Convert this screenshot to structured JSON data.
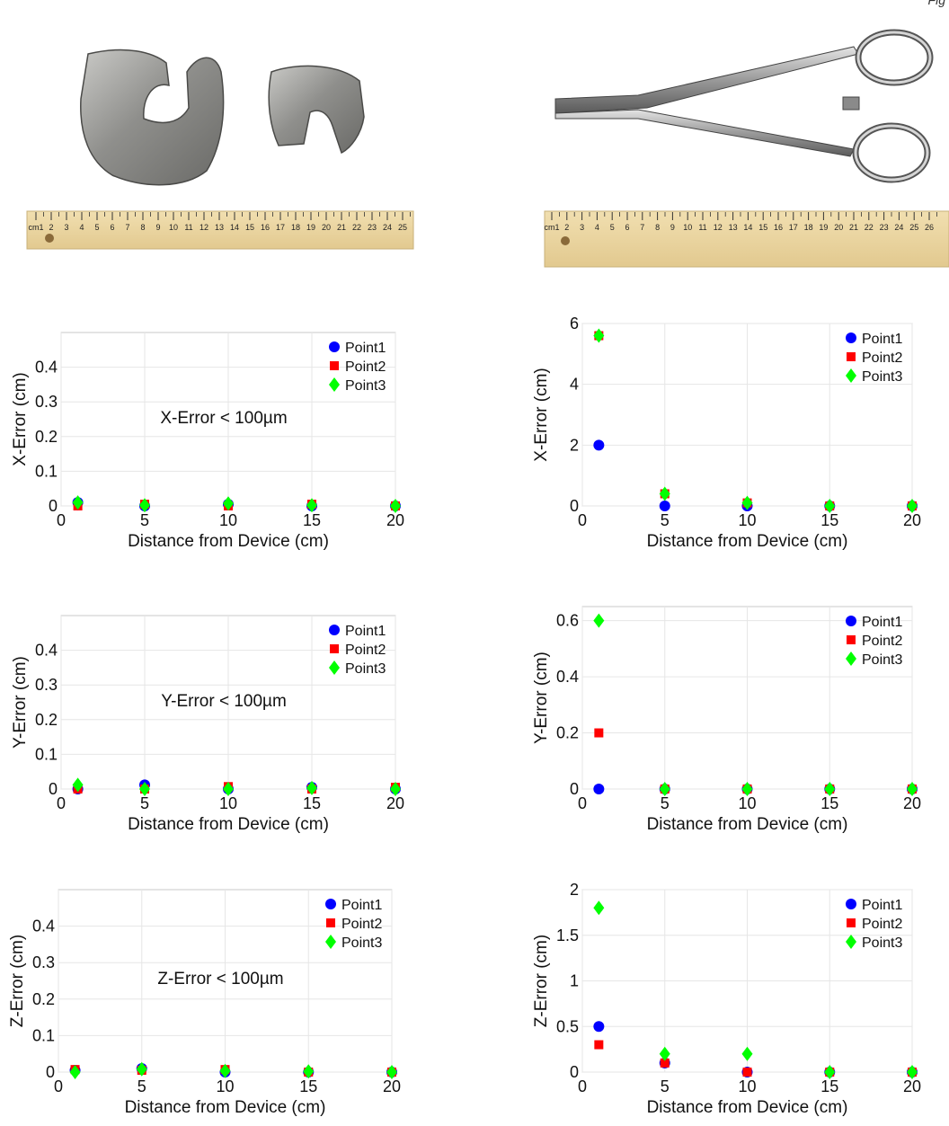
{
  "page_corner_text": "Fig",
  "photos": {
    "left": {
      "description_icon": "knee-implant-icon",
      "ruler_labels": [
        "cm1",
        "2",
        "3",
        "4",
        "5",
        "6",
        "7",
        "8",
        "9",
        "10",
        "11",
        "12",
        "13",
        "14",
        "15",
        "16",
        "17",
        "18",
        "19",
        "20",
        "21",
        "22",
        "23",
        "24",
        "25"
      ]
    },
    "right": {
      "description_icon": "forceps-icon",
      "ruler_labels": [
        "cm1",
        "2",
        "3",
        "4",
        "5",
        "6",
        "7",
        "8",
        "9",
        "10",
        "11",
        "12",
        "13",
        "14",
        "15",
        "16",
        "17",
        "18",
        "19",
        "20",
        "21",
        "22",
        "23",
        "24",
        "25",
        "26"
      ]
    }
  },
  "colors": {
    "point1": "#0000ff",
    "point2": "#ff0000",
    "point3": "#00ff00"
  },
  "chart_data": [
    {
      "type": "scatter",
      "id": "x-left",
      "xlabel": "Distance from Device (cm)",
      "ylabel": "X-Error (cm)",
      "xlim": [
        0,
        20
      ],
      "ylim": [
        0,
        0.5
      ],
      "xticks": [
        0,
        5,
        10,
        15,
        20
      ],
      "xtick_labels": [
        "0",
        "5",
        "10",
        "15",
        "20"
      ],
      "yticks": [
        0,
        0.1,
        0.2,
        0.3,
        0.4
      ],
      "ytick_labels": [
        "0",
        "0.1",
        "0.2",
        "0.3",
        "0.4"
      ],
      "annotation": "X-Error < 100µm",
      "grid": true,
      "legend_position": "top-right",
      "series": [
        {
          "name": "Point1",
          "marker": "circle",
          "x": [
            1,
            5,
            10,
            15,
            20
          ],
          "y": [
            0.01,
            0,
            0.005,
            0,
            0
          ]
        },
        {
          "name": "Point2",
          "marker": "square",
          "x": [
            1,
            5,
            10,
            15,
            20
          ],
          "y": [
            0,
            0.005,
            0,
            0.005,
            0
          ]
        },
        {
          "name": "Point3",
          "marker": "diamond",
          "x": [
            1,
            5,
            10,
            15,
            20
          ],
          "y": [
            0.01,
            0.002,
            0.007,
            0.002,
            0
          ]
        }
      ]
    },
    {
      "type": "scatter",
      "id": "x-right",
      "xlabel": "Distance from Device (cm)",
      "ylabel": "X-Error (cm)",
      "xlim": [
        0,
        20
      ],
      "ylim": [
        0,
        6
      ],
      "xticks": [
        0,
        5,
        10,
        15,
        20
      ],
      "xtick_labels": [
        "0",
        "5",
        "10",
        "15",
        "20"
      ],
      "yticks": [
        0,
        2,
        4,
        6
      ],
      "ytick_labels": [
        "0",
        "2",
        "4",
        "6"
      ],
      "annotation": "",
      "grid": true,
      "legend_position": "top-right",
      "series": [
        {
          "name": "Point1",
          "marker": "circle",
          "x": [
            1,
            5,
            10,
            15,
            20
          ],
          "y": [
            2,
            0,
            0,
            0,
            0
          ]
        },
        {
          "name": "Point2",
          "marker": "square",
          "x": [
            1,
            5,
            10,
            15,
            20
          ],
          "y": [
            5.6,
            0.4,
            0.1,
            0,
            0
          ]
        },
        {
          "name": "Point3",
          "marker": "diamond",
          "x": [
            1,
            5,
            10,
            15,
            20
          ],
          "y": [
            5.6,
            0.4,
            0.1,
            0,
            0
          ]
        }
      ]
    },
    {
      "type": "scatter",
      "id": "y-left",
      "xlabel": "Distance from Device (cm)",
      "ylabel": "Y-Error (cm)",
      "xlim": [
        0,
        20
      ],
      "ylim": [
        0,
        0.5
      ],
      "xticks": [
        0,
        5,
        10,
        15,
        20
      ],
      "xtick_labels": [
        "0",
        "5",
        "10",
        "15",
        "20"
      ],
      "yticks": [
        0,
        0.1,
        0.2,
        0.3,
        0.4
      ],
      "ytick_labels": [
        "0",
        "0.1",
        "0.2",
        "0.3",
        "0.4"
      ],
      "annotation": "Y-Error < 100µm",
      "grid": true,
      "legend_position": "top-right",
      "series": [
        {
          "name": "Point1",
          "marker": "circle",
          "x": [
            1,
            5,
            10,
            15,
            20
          ],
          "y": [
            0,
            0.012,
            0,
            0.005,
            0
          ]
        },
        {
          "name": "Point2",
          "marker": "square",
          "x": [
            1,
            5,
            10,
            15,
            20
          ],
          "y": [
            0,
            0,
            0.007,
            0,
            0.005
          ]
        },
        {
          "name": "Point3",
          "marker": "diamond",
          "x": [
            1,
            5,
            10,
            15,
            20
          ],
          "y": [
            0.012,
            0,
            0,
            0.003,
            0
          ]
        }
      ]
    },
    {
      "type": "scatter",
      "id": "y-right",
      "xlabel": "Distance from Device (cm)",
      "ylabel": "Y-Error (cm)",
      "xlim": [
        0,
        20
      ],
      "ylim": [
        0,
        0.65
      ],
      "xticks": [
        0,
        5,
        10,
        15,
        20
      ],
      "xtick_labels": [
        "0",
        "5",
        "10",
        "15",
        "20"
      ],
      "yticks": [
        0,
        0.2,
        0.4,
        0.6
      ],
      "ytick_labels": [
        "0",
        "0.2",
        "0.4",
        "0.6"
      ],
      "annotation": "",
      "grid": true,
      "legend_position": "top-right",
      "series": [
        {
          "name": "Point1",
          "marker": "circle",
          "x": [
            1,
            5,
            10,
            15,
            20
          ],
          "y": [
            0,
            0,
            0,
            0,
            0
          ]
        },
        {
          "name": "Point2",
          "marker": "square",
          "x": [
            1,
            5,
            10,
            15,
            20
          ],
          "y": [
            0.2,
            0,
            0,
            0,
            0
          ]
        },
        {
          "name": "Point3",
          "marker": "diamond",
          "x": [
            1,
            5,
            10,
            15,
            20
          ],
          "y": [
            0.6,
            0,
            0,
            0,
            0
          ]
        }
      ]
    },
    {
      "type": "scatter",
      "id": "z-left",
      "xlabel": "Distance from Device (cm)",
      "ylabel": "Z-Error (cm)",
      "xlim": [
        0,
        20
      ],
      "ylim": [
        0,
        0.5
      ],
      "xticks": [
        0,
        5,
        10,
        15,
        20
      ],
      "xtick_labels": [
        "0",
        "5",
        "10",
        "15",
        "20"
      ],
      "yticks": [
        0,
        0.1,
        0.2,
        0.3,
        0.4
      ],
      "ytick_labels": [
        "0",
        "0.1",
        "0.2",
        "0.3",
        "0.4"
      ],
      "annotation": "Z-Error < 100µm",
      "grid": true,
      "legend_position": "top-right",
      "series": [
        {
          "name": "Point1",
          "marker": "circle",
          "x": [
            1,
            5,
            10,
            15,
            20
          ],
          "y": [
            0.005,
            0.01,
            0,
            0,
            0
          ]
        },
        {
          "name": "Point2",
          "marker": "square",
          "x": [
            1,
            5,
            10,
            15,
            20
          ],
          "y": [
            0.007,
            0.005,
            0.007,
            0,
            0
          ]
        },
        {
          "name": "Point3",
          "marker": "diamond",
          "x": [
            1,
            5,
            10,
            15,
            20
          ],
          "y": [
            0,
            0.008,
            0.003,
            0.002,
            0
          ]
        }
      ]
    },
    {
      "type": "scatter",
      "id": "z-right",
      "xlabel": "Distance from Device (cm)",
      "ylabel": "Z-Error (cm)",
      "xlim": [
        0,
        20
      ],
      "ylim": [
        0,
        2
      ],
      "xticks": [
        0,
        5,
        10,
        15,
        20
      ],
      "xtick_labels": [
        "0",
        "5",
        "10",
        "15",
        "20"
      ],
      "yticks": [
        0,
        0.5,
        1,
        1.5,
        2
      ],
      "ytick_labels": [
        "0",
        "0.5",
        "1",
        "1.5",
        "2"
      ],
      "annotation": "",
      "grid": true,
      "legend_position": "top-right",
      "series": [
        {
          "name": "Point1",
          "marker": "circle",
          "x": [
            1,
            5,
            10,
            15,
            20
          ],
          "y": [
            0.5,
            0.1,
            0,
            0,
            0
          ]
        },
        {
          "name": "Point2",
          "marker": "square",
          "x": [
            1,
            5,
            10,
            15,
            20
          ],
          "y": [
            0.3,
            0.1,
            0,
            0,
            0
          ]
        },
        {
          "name": "Point3",
          "marker": "diamond",
          "x": [
            1,
            5,
            10,
            15,
            20
          ],
          "y": [
            1.8,
            0.2,
            0.2,
            0,
            0
          ]
        }
      ]
    }
  ]
}
